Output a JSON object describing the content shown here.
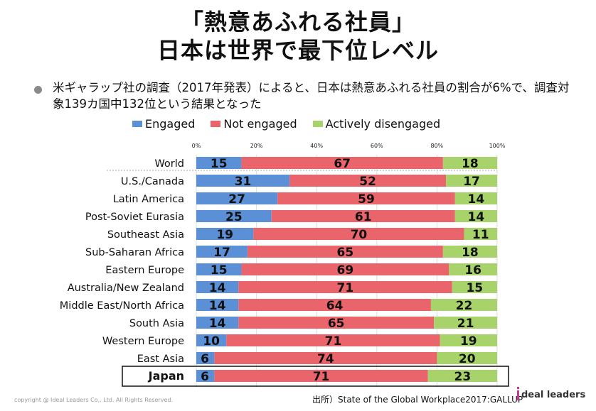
{
  "title_line1": "「熱意あふれる社員」",
  "title_line2": "日本は世界で最下位レベル",
  "bullet_text": "米ギャラップ社の調査（2017年発表）によると、日本は熱意あふれる社員の割合が6%で、調査対象139カ国中132位という結果となった",
  "footer_copyright": "copyright @ Ideal Leaders Co,. Ltd. All Rights Reserved.",
  "footer_source": "出所）State of the Global Workplace2017:GALLUP",
  "logo_text": "deal leaders",
  "colors": {
    "engaged": "#5b8fd6",
    "not_engaged": "#e9656b",
    "disengaged": "#a8d36a",
    "grid": "#dddddd"
  },
  "chart_data": {
    "type": "bar",
    "orientation": "horizontal",
    "stacked": true,
    "x_ticks": [
      "0%",
      "20%",
      "40%",
      "60%",
      "80%",
      "100%"
    ],
    "xlim": [
      0,
      100
    ],
    "legend_position": "top",
    "categories": [
      "World",
      "U.S./Canada",
      "Latin America",
      "Post-Soviet Eurasia",
      "Southeast Asia",
      "Sub-Saharan Africa",
      "Eastern Europe",
      "Australia/New Zealand",
      "Middle East/North Africa",
      "South Asia",
      "Western Europe",
      "East Asia",
      "Japan"
    ],
    "highlight_category": "Japan",
    "series": [
      {
        "name": "Engaged",
        "values": [
          15,
          31,
          27,
          25,
          19,
          17,
          15,
          14,
          14,
          14,
          10,
          6,
          6
        ]
      },
      {
        "name": "Not engaged",
        "values": [
          67,
          52,
          59,
          61,
          70,
          65,
          69,
          71,
          64,
          65,
          71,
          74,
          71
        ]
      },
      {
        "name": "Actively disengaged",
        "values": [
          18,
          17,
          14,
          14,
          11,
          18,
          16,
          15,
          22,
          21,
          19,
          20,
          23
        ]
      }
    ]
  }
}
